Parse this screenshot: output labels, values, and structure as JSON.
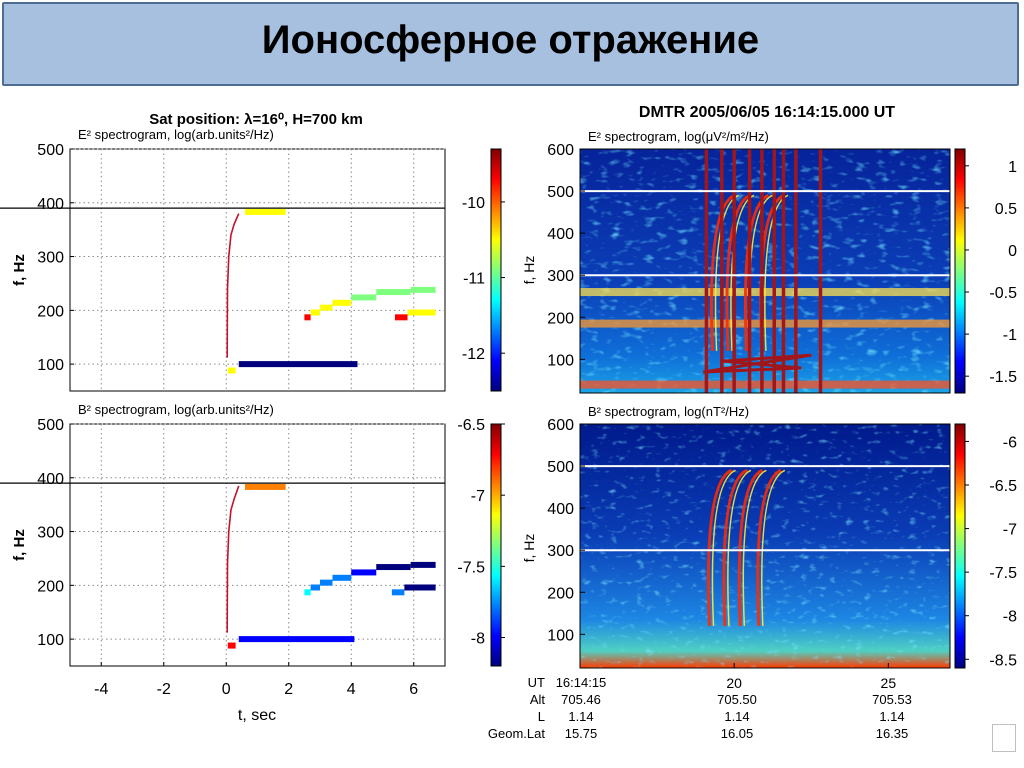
{
  "slide": {
    "title": "Ионосферное отражение"
  },
  "colors": {
    "title_bg": "#a7c0e0",
    "title_border": "#4f6d94",
    "spectro_bg": "#0a2a9e",
    "jet": [
      "#00007f",
      "#0000ff",
      "#007fff",
      "#00ffff",
      "#7fff7f",
      "#ffff00",
      "#ff7f00",
      "#ff0000",
      "#7f0000"
    ]
  },
  "left": {
    "heading": "Sat position:  λ=16⁰,  H=700 km",
    "xlabel": "t, sec",
    "x_ticks": [
      "-4",
      "-2",
      "0",
      "2",
      "4",
      "6"
    ],
    "y_ticks": [
      "100",
      "200",
      "300",
      "400",
      "500"
    ],
    "top": {
      "subtitle": "E² spectrogram, log(arb.units²/Hz)",
      "ylabel": "f, Hz",
      "colorbar_ticks": [
        "-10",
        "-11",
        "-12"
      ]
    },
    "bottom": {
      "subtitle": "B² spectrogram, log(arb.units²/Hz)",
      "ylabel": "f, Hz",
      "colorbar_ticks": [
        "-6.5",
        "-7",
        "-7.5",
        "-8"
      ]
    }
  },
  "right": {
    "heading": "DMTR  2005/06/05  16:14:15.000  UT",
    "x_ticks": [
      "20",
      "25"
    ],
    "y_ticks": [
      "100",
      "200",
      "300",
      "400",
      "500",
      "600"
    ],
    "top": {
      "subtitle": "E² spectrogram, log(μV²/m²/Hz)",
      "ylabel": "f, Hz",
      "colorbar_ticks": [
        "1",
        "0.5",
        "0",
        "-0.5",
        "-1",
        "-1.5"
      ]
    },
    "bottom": {
      "subtitle": "B² spectrogram, log(nT²/Hz)",
      "ylabel": "f, Hz",
      "colorbar_ticks": [
        "-6",
        "-6.5",
        "-7",
        "-7.5",
        "-8",
        "-8.5"
      ]
    },
    "orbit_table": {
      "labels": [
        "UT",
        "Alt",
        "L",
        "Geom.Lat"
      ],
      "columns": [
        [
          "16:14:15",
          "705.46",
          "1.14",
          "15.75"
        ],
        [
          "20",
          "705.50",
          "1.14",
          "16.05"
        ],
        [
          "25",
          "705.53",
          "1.14",
          "16.35"
        ]
      ]
    }
  },
  "chart_data": [
    {
      "type": "scatter",
      "title": "E² spectrogram, log(arb.units²/Hz)",
      "xlabel": "t, sec",
      "ylabel": "f, Hz",
      "xlim": [
        -5,
        7
      ],
      "ylim": [
        50,
        500
      ],
      "reflection_line_hz": 390,
      "colorbar": {
        "range": [
          -12.5,
          -9.3
        ],
        "ticks": [
          -10,
          -11,
          -12
        ]
      },
      "segments": [
        {
          "t0": 0.6,
          "t1": 1.9,
          "f": 383,
          "level": -10.7
        },
        {
          "t0": 0.4,
          "t1": 4.2,
          "f": 100,
          "level": -12.4
        },
        {
          "t0": 0.05,
          "t1": 0.3,
          "f": 88,
          "level": -10.6
        },
        {
          "t0": 2.5,
          "t1": 2.7,
          "f": 187,
          "level": -9.8
        },
        {
          "t0": 2.7,
          "t1": 3.0,
          "f": 196,
          "level": -10.3
        },
        {
          "t0": 3.0,
          "t1": 3.4,
          "f": 205,
          "level": -10.6
        },
        {
          "t0": 3.4,
          "t1": 4.0,
          "f": 214,
          "level": -10.7
        },
        {
          "t0": 4.0,
          "t1": 4.8,
          "f": 224,
          "level": -10.8
        },
        {
          "t0": 4.8,
          "t1": 5.9,
          "f": 234,
          "level": -11.0
        },
        {
          "t0": 5.9,
          "t1": 6.7,
          "f": 238,
          "level": -11.1
        },
        {
          "t0": 5.4,
          "t1": 5.8,
          "f": 187,
          "level": -9.8
        },
        {
          "t0": 5.8,
          "t1": 6.7,
          "f": 196,
          "level": -10.5
        }
      ],
      "dispersion_trace": [
        {
          "t": 0.03,
          "f": 112
        },
        {
          "t": 0.04,
          "f": 240
        },
        {
          "t": 0.08,
          "f": 300
        },
        {
          "t": 0.15,
          "f": 340
        },
        {
          "t": 0.25,
          "f": 360
        },
        {
          "t": 0.4,
          "f": 380
        }
      ]
    },
    {
      "type": "scatter",
      "title": "B² spectrogram, log(arb.units²/Hz)",
      "xlabel": "t, sec",
      "ylabel": "f, Hz",
      "xlim": [
        -5,
        7
      ],
      "ylim": [
        50,
        500
      ],
      "reflection_line_hz": 390,
      "colorbar": {
        "range": [
          -8.2,
          -6.5
        ],
        "ticks": [
          -6.5,
          -7,
          -7.5,
          -8
        ]
      },
      "segments": [
        {
          "t0": 0.6,
          "t1": 1.9,
          "f": 383,
          "level": -6.9
        },
        {
          "t0": 0.4,
          "t1": 4.1,
          "f": 100,
          "level": -8.0
        },
        {
          "t0": 0.05,
          "t1": 0.3,
          "f": 88,
          "level": -6.8
        },
        {
          "t0": 2.5,
          "t1": 2.7,
          "f": 187,
          "level": -7.5
        },
        {
          "t0": 2.7,
          "t1": 3.0,
          "f": 196,
          "level": -7.7
        },
        {
          "t0": 3.0,
          "t1": 3.4,
          "f": 205,
          "level": -7.75
        },
        {
          "t0": 3.4,
          "t1": 4.0,
          "f": 214,
          "level": -7.85
        },
        {
          "t0": 4.0,
          "t1": 4.8,
          "f": 224,
          "level": -8.0
        },
        {
          "t0": 4.8,
          "t1": 5.9,
          "f": 234,
          "level": -8.1
        },
        {
          "t0": 5.9,
          "t1": 6.7,
          "f": 238,
          "level": -8.15
        },
        {
          "t0": 5.3,
          "t1": 5.7,
          "f": 187,
          "level": -7.7
        },
        {
          "t0": 5.7,
          "t1": 6.7,
          "f": 196,
          "level": -8.1
        }
      ],
      "dispersion_trace": [
        {
          "t": 0.03,
          "f": 112
        },
        {
          "t": 0.04,
          "f": 240
        },
        {
          "t": 0.08,
          "f": 300
        },
        {
          "t": 0.15,
          "f": 340
        },
        {
          "t": 0.25,
          "f": 360
        },
        {
          "t": 0.4,
          "f": 385
        }
      ]
    },
    {
      "type": "heatmap",
      "title": "E² spectrogram, log(μV²/m²/Hz)",
      "ylabel": "f, Hz",
      "xlim": [
        15,
        27
      ],
      "ylim": [
        20,
        600
      ],
      "reference_lines_hz": [
        500,
        300
      ],
      "colorbar": {
        "range": [
          -1.7,
          1.2
        ],
        "ticks": [
          1,
          0.5,
          0,
          -0.5,
          -1,
          -1.5
        ]
      },
      "emission_bands_hz": [
        260,
        185,
        40
      ],
      "vertical_interference_s": [
        19.1,
        19.6,
        20.0,
        20.5,
        20.9,
        21.3,
        21.6,
        22.0,
        22.8
      ],
      "reflection_arcs_s": [
        19.3,
        19.8,
        20.4,
        20.9
      ]
    },
    {
      "type": "heatmap",
      "title": "B² spectrogram, log(nT²/Hz)",
      "ylabel": "f, Hz",
      "xlim": [
        15,
        27
      ],
      "ylim": [
        20,
        600
      ],
      "reference_lines_hz": [
        500,
        300
      ],
      "colorbar": {
        "range": [
          -8.6,
          -5.8
        ],
        "ticks": [
          -6,
          -6.5,
          -7,
          -7.5,
          -8,
          -8.5
        ]
      },
      "reflection_arcs_s": [
        19.2,
        19.7,
        20.2,
        20.8
      ]
    }
  ]
}
